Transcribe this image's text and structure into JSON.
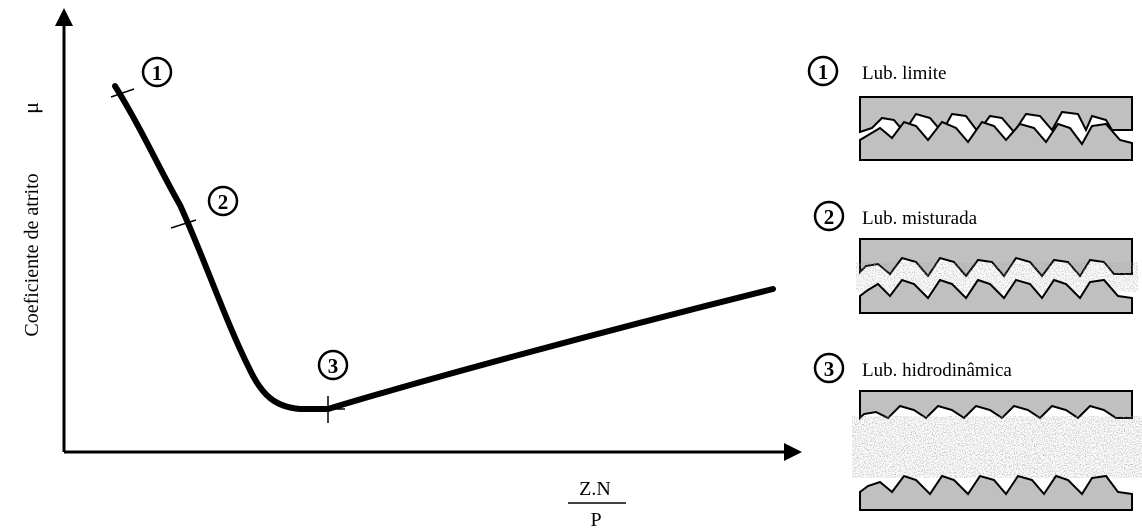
{
  "chart": {
    "y_axis_label": "Coeficiente de atrito",
    "y_axis_symbol": "μ",
    "x_axis_numerator": "Z.N",
    "x_axis_denominator": "P",
    "curve_markers": [
      {
        "number": "1"
      },
      {
        "number": "2"
      },
      {
        "number": "3"
      }
    ]
  },
  "legend": [
    {
      "number": "1",
      "label": "Lub. limite",
      "lubricant": "none"
    },
    {
      "number": "2",
      "label": "Lub. misturada",
      "lubricant": "partial"
    },
    {
      "number": "3",
      "label": "Lub. hidrodinâmica",
      "lubricant": "full"
    }
  ],
  "colors": {
    "surface": "#c0c0c0",
    "outline": "#000000",
    "lubricant": "#a8a8a8",
    "background": "#ffffff"
  }
}
